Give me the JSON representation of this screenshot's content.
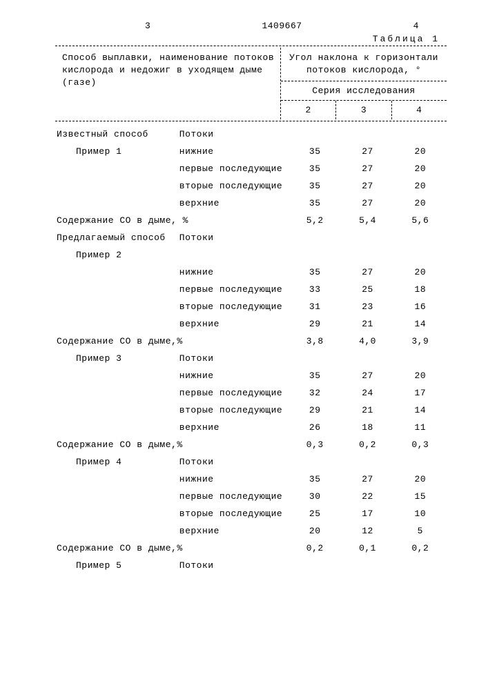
{
  "page": {
    "left_num": "3",
    "doc_num": "1409667",
    "right_num": "4",
    "table_label": "Таблица 1"
  },
  "header": {
    "left": "Способ выплавки, наименование потоков кислорода и недожиг в уходящем дыме (газе)",
    "right_top": "Угол наклона к горизонтали потоков кислорода, °",
    "right_mid": "Серия исследования",
    "cols": [
      "2",
      "3",
      "4"
    ]
  },
  "rows": [
    {
      "l1": "Известный способ",
      "l2": "Потоки",
      "v": [
        "",
        "",
        ""
      ]
    },
    {
      "l1": "Пример 1",
      "l2": "нижние",
      "v": [
        "35",
        "27",
        "20"
      ],
      "indent": true
    },
    {
      "l1": "",
      "l2": "первые последующие",
      "v": [
        "35",
        "27",
        "20"
      ]
    },
    {
      "l1": "",
      "l2": "вторые последующие",
      "v": [
        "35",
        "27",
        "20"
      ]
    },
    {
      "l1": "",
      "l2": "верхние",
      "v": [
        "35",
        "27",
        "20"
      ]
    },
    {
      "l1": "Содержание СО в дыме, %",
      "l2": "",
      "v": [
        "5,2",
        "5,4",
        "5,6"
      ],
      "span": true
    },
    {
      "l1": "Предлагаемый способ",
      "l2": "Потоки",
      "v": [
        "",
        "",
        ""
      ]
    },
    {
      "l1": "Пример 2",
      "l2": "",
      "v": [
        "",
        "",
        ""
      ],
      "indent": true
    },
    {
      "l1": "",
      "l2": "нижние",
      "v": [
        "35",
        "27",
        "20"
      ]
    },
    {
      "l1": "",
      "l2": "первые последующие",
      "v": [
        "33",
        "25",
        "18"
      ]
    },
    {
      "l1": "",
      "l2": "вторые последующие",
      "v": [
        "31",
        "23",
        "16"
      ]
    },
    {
      "l1": "",
      "l2": "верхние",
      "v": [
        "29",
        "21",
        "14"
      ]
    },
    {
      "l1": "Содержание СО в дыме,%",
      "l2": "",
      "v": [
        "3,8",
        "4,0",
        "3,9"
      ],
      "span": true
    },
    {
      "l1": "Пример 3",
      "l2": "Потоки",
      "v": [
        "",
        "",
        ""
      ],
      "indent": true
    },
    {
      "l1": "",
      "l2": "нижние",
      "v": [
        "35",
        "27",
        "20"
      ]
    },
    {
      "l1": "",
      "l2": "первые последующие",
      "v": [
        "32",
        "24",
        "17"
      ]
    },
    {
      "l1": "",
      "l2": "вторые последующие",
      "v": [
        "29",
        "21",
        "14"
      ]
    },
    {
      "l1": "",
      "l2": "верхние",
      "v": [
        "26",
        "18",
        "11"
      ]
    },
    {
      "l1": "Содержание СО в дыме,%",
      "l2": "",
      "v": [
        "0,3",
        "0,2",
        "0,3"
      ],
      "span": true
    },
    {
      "l1": "Пример 4",
      "l2": "Потоки",
      "v": [
        "",
        "",
        ""
      ],
      "indent": true
    },
    {
      "l1": "",
      "l2": "нижние",
      "v": [
        "35",
        "27",
        "20"
      ]
    },
    {
      "l1": "",
      "l2": "первые последующие",
      "v": [
        "30",
        "22",
        "15"
      ]
    },
    {
      "l1": "",
      "l2": "вторые последующие",
      "v": [
        "25",
        "17",
        "10"
      ]
    },
    {
      "l1": "",
      "l2": "верхние",
      "v": [
        "20",
        "12",
        "5"
      ]
    },
    {
      "l1": "Содержание СО в дыме,%",
      "l2": "",
      "v": [
        "0,2",
        "0,1",
        "0,2"
      ],
      "span": true
    },
    {
      "l1": "Пример 5",
      "l2": "Потоки",
      "v": [
        "",
        "",
        ""
      ],
      "indent": true
    }
  ]
}
